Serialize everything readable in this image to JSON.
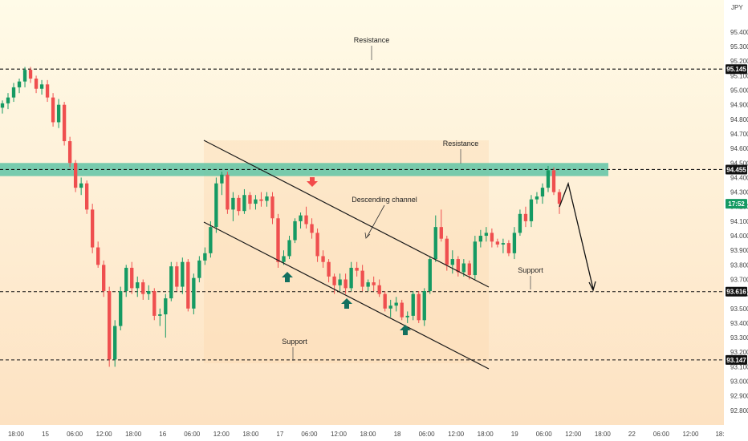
{
  "chart_data": {
    "type": "candlestick",
    "currency": "JPY",
    "ylim": [
      92.7,
      95.62
    ],
    "y_ticks": [
      "95.400",
      "95.300",
      "95.200",
      "95.100",
      "95.000",
      "94.900",
      "94.800",
      "94.700",
      "94.600",
      "94.500",
      "94.400",
      "94.300",
      "94.200",
      "94.100",
      "94.000",
      "93.900",
      "93.800",
      "93.700",
      "93.600",
      "93.500",
      "93.400",
      "93.300",
      "93.200",
      "93.100",
      "93.000",
      "92.900",
      "92.800"
    ],
    "x_ticks": [
      "18:00",
      "15",
      "06:00",
      "12:00",
      "18:00",
      "16",
      "06:00",
      "12:00",
      "18:00",
      "17",
      "06:00",
      "12:00",
      "18:00",
      "18",
      "06:00",
      "12:00",
      "18:00",
      "19",
      "06:00",
      "12:00",
      "18:00",
      "22",
      "06:00",
      "12:00",
      "18:"
    ],
    "price_labels": [
      {
        "label": "95.145",
        "value": 95.145,
        "kind": "level"
      },
      {
        "label": "94.455",
        "value": 94.455,
        "kind": "level"
      },
      {
        "label": "17:52",
        "value": 94.22,
        "kind": "current"
      },
      {
        "label": "93.616",
        "value": 93.616,
        "kind": "level"
      },
      {
        "label": "93.147",
        "value": 93.147,
        "kind": "level"
      }
    ],
    "levels": [
      95.145,
      94.455,
      93.616,
      93.147
    ],
    "resistance_zone": [
      94.41,
      94.5
    ],
    "annotations": {
      "resistance_top": "Resistance",
      "resistance_mid": "Resistance",
      "channel": "Descending channel",
      "support_mid": "Support",
      "support_low": "Support"
    },
    "candles": [
      {
        "o": 94.88,
        "h": 94.93,
        "l": 94.84,
        "c": 94.91
      },
      {
        "o": 94.91,
        "h": 94.98,
        "l": 94.87,
        "c": 94.95
      },
      {
        "o": 94.95,
        "h": 95.05,
        "l": 94.92,
        "c": 95.02
      },
      {
        "o": 95.02,
        "h": 95.08,
        "l": 94.98,
        "c": 95.06
      },
      {
        "o": 95.06,
        "h": 95.16,
        "l": 95.02,
        "c": 95.14
      },
      {
        "o": 95.14,
        "h": 95.16,
        "l": 95.05,
        "c": 95.08
      },
      {
        "o": 95.08,
        "h": 95.1,
        "l": 94.98,
        "c": 95.01
      },
      {
        "o": 95.01,
        "h": 95.07,
        "l": 94.97,
        "c": 95.04
      },
      {
        "o": 95.04,
        "h": 95.07,
        "l": 94.92,
        "c": 94.95
      },
      {
        "o": 94.95,
        "h": 94.98,
        "l": 94.75,
        "c": 94.78
      },
      {
        "o": 94.78,
        "h": 94.94,
        "l": 94.74,
        "c": 94.9
      },
      {
        "o": 94.9,
        "h": 94.92,
        "l": 94.62,
        "c": 94.65
      },
      {
        "o": 94.65,
        "h": 94.68,
        "l": 94.47,
        "c": 94.5
      },
      {
        "o": 94.5,
        "h": 94.52,
        "l": 94.3,
        "c": 94.33
      },
      {
        "o": 94.33,
        "h": 94.4,
        "l": 94.28,
        "c": 94.36
      },
      {
        "o": 94.36,
        "h": 94.38,
        "l": 94.15,
        "c": 94.18
      },
      {
        "o": 94.18,
        "h": 94.22,
        "l": 93.88,
        "c": 93.92
      },
      {
        "o": 93.92,
        "h": 93.96,
        "l": 93.78,
        "c": 93.8
      },
      {
        "o": 93.8,
        "h": 93.83,
        "l": 93.58,
        "c": 93.62
      },
      {
        "o": 93.62,
        "h": 93.65,
        "l": 93.1,
        "c": 93.15
      },
      {
        "o": 93.15,
        "h": 93.42,
        "l": 93.1,
        "c": 93.38
      },
      {
        "o": 93.38,
        "h": 93.65,
        "l": 93.35,
        "c": 93.62
      },
      {
        "o": 93.62,
        "h": 93.8,
        "l": 93.58,
        "c": 93.78
      },
      {
        "o": 93.78,
        "h": 93.82,
        "l": 93.6,
        "c": 93.64
      },
      {
        "o": 93.64,
        "h": 93.72,
        "l": 93.58,
        "c": 93.68
      },
      {
        "o": 93.68,
        "h": 93.7,
        "l": 93.56,
        "c": 93.6
      },
      {
        "o": 93.6,
        "h": 93.66,
        "l": 93.56,
        "c": 93.62
      },
      {
        "o": 93.62,
        "h": 93.64,
        "l": 93.42,
        "c": 93.45
      },
      {
        "o": 93.45,
        "h": 93.5,
        "l": 93.38,
        "c": 93.46
      },
      {
        "o": 93.46,
        "h": 93.6,
        "l": 93.3,
        "c": 93.57
      },
      {
        "o": 93.57,
        "h": 93.82,
        "l": 93.55,
        "c": 93.79
      },
      {
        "o": 93.79,
        "h": 93.82,
        "l": 93.62,
        "c": 93.65
      },
      {
        "o": 93.65,
        "h": 93.85,
        "l": 93.6,
        "c": 93.82
      },
      {
        "o": 93.82,
        "h": 93.84,
        "l": 93.48,
        "c": 93.5
      },
      {
        "o": 93.5,
        "h": 93.74,
        "l": 93.46,
        "c": 93.71
      },
      {
        "o": 93.71,
        "h": 93.86,
        "l": 93.68,
        "c": 93.83
      },
      {
        "o": 93.83,
        "h": 93.92,
        "l": 93.8,
        "c": 93.88
      },
      {
        "o": 93.88,
        "h": 94.1,
        "l": 93.85,
        "c": 94.06
      },
      {
        "o": 94.06,
        "h": 94.4,
        "l": 94.02,
        "c": 94.36
      },
      {
        "o": 94.36,
        "h": 94.44,
        "l": 94.28,
        "c": 94.42
      },
      {
        "o": 94.42,
        "h": 94.44,
        "l": 94.15,
        "c": 94.18
      },
      {
        "o": 94.18,
        "h": 94.3,
        "l": 94.1,
        "c": 94.26
      },
      {
        "o": 94.26,
        "h": 94.28,
        "l": 94.14,
        "c": 94.17
      },
      {
        "o": 94.17,
        "h": 94.32,
        "l": 94.15,
        "c": 94.28
      },
      {
        "o": 94.28,
        "h": 94.3,
        "l": 94.18,
        "c": 94.22
      },
      {
        "o": 94.22,
        "h": 94.28,
        "l": 94.18,
        "c": 94.25
      },
      {
        "o": 94.25,
        "h": 94.3,
        "l": 94.2,
        "c": 94.24
      },
      {
        "o": 94.24,
        "h": 94.3,
        "l": 94.2,
        "c": 94.27
      },
      {
        "o": 94.27,
        "h": 94.3,
        "l": 94.08,
        "c": 94.12
      },
      {
        "o": 94.12,
        "h": 94.15,
        "l": 93.78,
        "c": 93.82
      },
      {
        "o": 93.82,
        "h": 93.9,
        "l": 93.8,
        "c": 93.86
      },
      {
        "o": 93.86,
        "h": 94.0,
        "l": 93.84,
        "c": 93.97
      },
      {
        "o": 93.97,
        "h": 94.12,
        "l": 93.95,
        "c": 94.1
      },
      {
        "o": 94.1,
        "h": 94.16,
        "l": 94.05,
        "c": 94.14
      },
      {
        "o": 94.14,
        "h": 94.2,
        "l": 94.05,
        "c": 94.08
      },
      {
        "o": 94.08,
        "h": 94.12,
        "l": 93.98,
        "c": 94.02
      },
      {
        "o": 94.02,
        "h": 94.05,
        "l": 93.82,
        "c": 93.86
      },
      {
        "o": 93.86,
        "h": 93.9,
        "l": 93.78,
        "c": 93.82
      },
      {
        "o": 93.82,
        "h": 93.84,
        "l": 93.68,
        "c": 93.72
      },
      {
        "o": 93.72,
        "h": 93.74,
        "l": 93.6,
        "c": 93.66
      },
      {
        "o": 93.66,
        "h": 93.74,
        "l": 93.62,
        "c": 93.7
      },
      {
        "o": 93.7,
        "h": 93.74,
        "l": 93.6,
        "c": 93.64
      },
      {
        "o": 93.64,
        "h": 93.82,
        "l": 93.62,
        "c": 93.78
      },
      {
        "o": 93.78,
        "h": 93.82,
        "l": 93.72,
        "c": 93.76
      },
      {
        "o": 93.76,
        "h": 93.8,
        "l": 93.62,
        "c": 93.65
      },
      {
        "o": 93.65,
        "h": 93.7,
        "l": 93.62,
        "c": 93.68
      },
      {
        "o": 93.68,
        "h": 93.72,
        "l": 93.62,
        "c": 93.66
      },
      {
        "o": 93.66,
        "h": 93.7,
        "l": 93.58,
        "c": 93.6
      },
      {
        "o": 93.6,
        "h": 93.62,
        "l": 93.48,
        "c": 93.5
      },
      {
        "o": 93.5,
        "h": 93.56,
        "l": 93.44,
        "c": 93.52
      },
      {
        "o": 93.52,
        "h": 93.58,
        "l": 93.48,
        "c": 93.54
      },
      {
        "o": 93.54,
        "h": 93.56,
        "l": 93.42,
        "c": 93.44
      },
      {
        "o": 93.44,
        "h": 93.48,
        "l": 93.4,
        "c": 93.45
      },
      {
        "o": 93.45,
        "h": 93.62,
        "l": 93.42,
        "c": 93.6
      },
      {
        "o": 93.6,
        "h": 93.62,
        "l": 93.4,
        "c": 93.42
      },
      {
        "o": 93.42,
        "h": 93.64,
        "l": 93.38,
        "c": 93.62
      },
      {
        "o": 93.62,
        "h": 93.86,
        "l": 93.6,
        "c": 93.84
      },
      {
        "o": 93.84,
        "h": 94.14,
        "l": 93.82,
        "c": 94.06
      },
      {
        "o": 94.06,
        "h": 94.18,
        "l": 93.96,
        "c": 93.98
      },
      {
        "o": 93.98,
        "h": 94.0,
        "l": 93.76,
        "c": 93.8
      },
      {
        "o": 93.8,
        "h": 93.9,
        "l": 93.74,
        "c": 93.84
      },
      {
        "o": 93.84,
        "h": 93.86,
        "l": 93.72,
        "c": 93.75
      },
      {
        "o": 93.75,
        "h": 93.84,
        "l": 93.72,
        "c": 93.81
      },
      {
        "o": 93.81,
        "h": 93.83,
        "l": 93.7,
        "c": 93.73
      },
      {
        "o": 93.73,
        "h": 94.0,
        "l": 93.7,
        "c": 93.96
      },
      {
        "o": 93.96,
        "h": 94.04,
        "l": 93.92,
        "c": 94.0
      },
      {
        "o": 94.0,
        "h": 94.06,
        "l": 93.96,
        "c": 94.02
      },
      {
        "o": 94.02,
        "h": 94.05,
        "l": 93.92,
        "c": 93.96
      },
      {
        "o": 93.96,
        "h": 93.98,
        "l": 93.92,
        "c": 93.94
      },
      {
        "o": 93.94,
        "h": 93.98,
        "l": 93.88,
        "c": 93.95
      },
      {
        "o": 93.95,
        "h": 93.97,
        "l": 93.86,
        "c": 93.88
      },
      {
        "o": 93.88,
        "h": 94.06,
        "l": 93.84,
        "c": 94.02
      },
      {
        "o": 94.02,
        "h": 94.18,
        "l": 94.0,
        "c": 94.15
      },
      {
        "o": 94.15,
        "h": 94.2,
        "l": 94.06,
        "c": 94.1
      },
      {
        "o": 94.1,
        "h": 94.28,
        "l": 94.06,
        "c": 94.25
      },
      {
        "o": 94.25,
        "h": 94.3,
        "l": 94.22,
        "c": 94.27
      },
      {
        "o": 94.27,
        "h": 94.36,
        "l": 94.22,
        "c": 94.33
      },
      {
        "o": 94.33,
        "h": 94.48,
        "l": 94.3,
        "c": 94.45
      },
      {
        "o": 94.45,
        "h": 94.47,
        "l": 94.28,
        "c": 94.3
      },
      {
        "o": 94.3,
        "h": 94.32,
        "l": 94.15,
        "c": 94.22
      }
    ]
  }
}
